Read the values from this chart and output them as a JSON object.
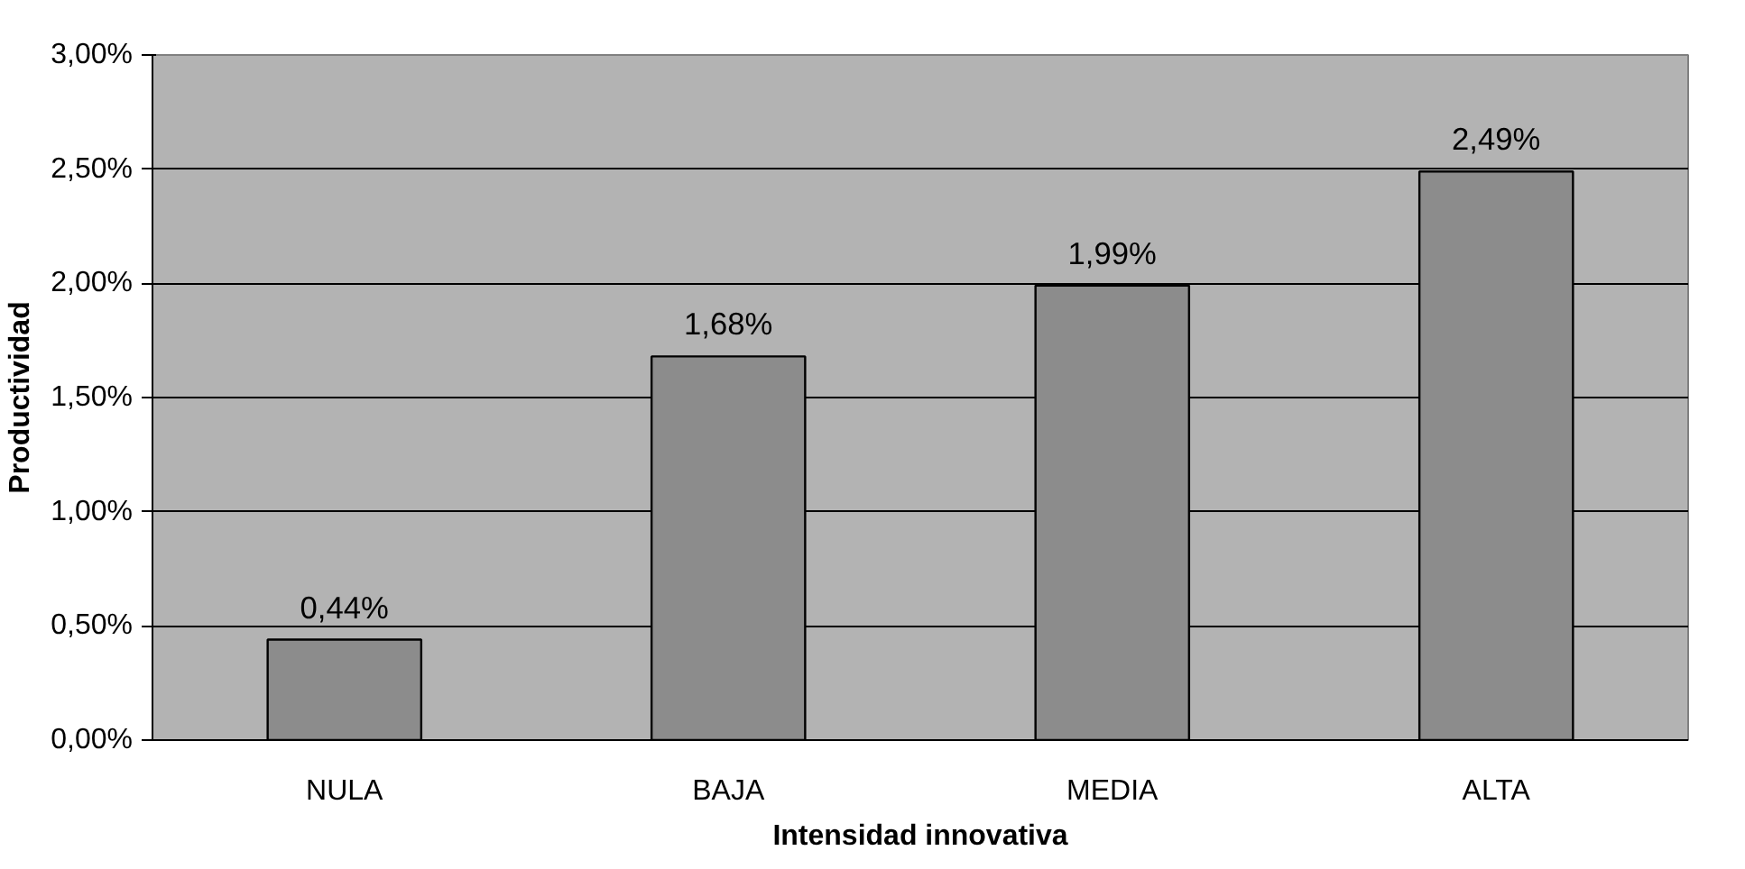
{
  "chart_data": {
    "type": "bar",
    "xlabel": "Intensidad innovativa",
    "ylabel": "Productividad",
    "categories": [
      "NULA",
      "BAJA",
      "MEDIA",
      "ALTA"
    ],
    "values": [
      0.44,
      1.68,
      1.99,
      2.49
    ],
    "value_labels": [
      "0,44%",
      "1,68%",
      "1,99%",
      "2,49%"
    ],
    "color": "#8c8c8c",
    "ylim": [
      0,
      3
    ],
    "yticks": [
      {
        "value": 0,
        "label": "0,00%"
      },
      {
        "value": 0.5,
        "label": "0,50%"
      },
      {
        "value": 1,
        "label": "1,00%"
      },
      {
        "value": 1.5,
        "label": "1,50%"
      },
      {
        "value": 2,
        "label": "2,00%"
      },
      {
        "value": 2.5,
        "label": "2,50%"
      },
      {
        "value": 3,
        "label": "3,00%"
      }
    ],
    "grid": "y"
  }
}
